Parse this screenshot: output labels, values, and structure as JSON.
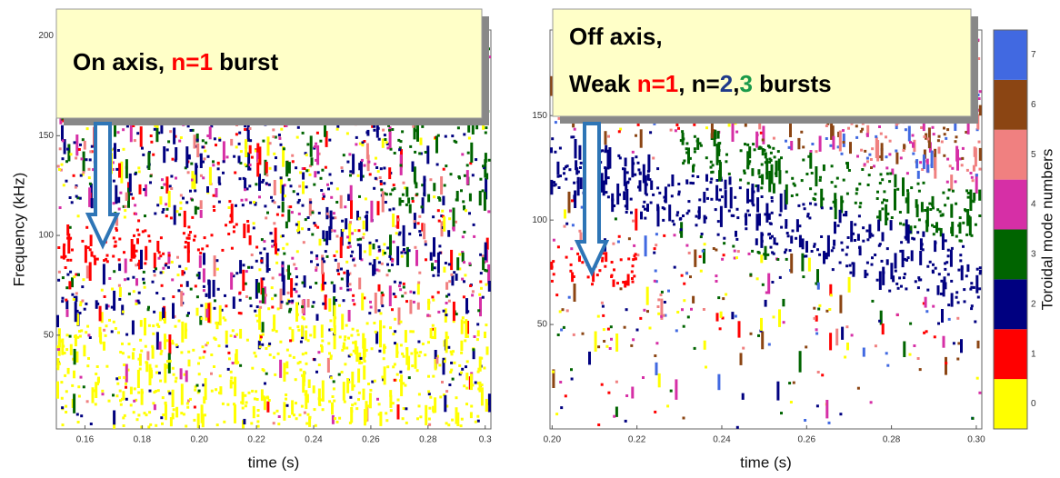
{
  "chart_data": [
    {
      "type": "spectrogram",
      "x_label": "time (s)",
      "y_label": "Frequency (kHz)",
      "xlim": [
        0.15,
        0.302
      ],
      "ylim": [
        3,
        203
      ],
      "xticks": [
        0.16,
        0.18,
        {
          "value": 0.2,
          "label": "0.20"
        },
        0.22,
        0.24,
        0.26,
        0.28,
        0.3
      ],
      "yticks": [
        50,
        100,
        150,
        200
      ],
      "annotation": {
        "lines": [
          [
            {
              "text": "On axis, ",
              "color": "#000000"
            },
            {
              "text": "n=1",
              "color": "#ff0000"
            },
            {
              "text": " burst",
              "color": "#000000"
            }
          ]
        ]
      }
    },
    {
      "type": "spectrogram",
      "x_label": "time (s)",
      "xlim": [
        0.1995,
        0.3013
      ],
      "ylim": [
        0,
        191
      ],
      "xticks": [
        {
          "value": 0.2,
          "label": "0.20"
        },
        0.22,
        0.24,
        0.26,
        0.28,
        {
          "value": 0.3,
          "label": "0.30"
        }
      ],
      "yticks": [
        50,
        100,
        150
      ],
      "annotation": {
        "lines": [
          [
            {
              "text": "Off axis,",
              "color": "#000000"
            }
          ],
          [
            {
              "text": "Weak ",
              "color": "#000000"
            },
            {
              "text": "n=1",
              "color": "#ff0000"
            },
            {
              "text": ", n=",
              "color": "#000000"
            },
            {
              "text": "2",
              "color": "#1f3a8a"
            },
            {
              "text": ",",
              "color": "#000000"
            },
            {
              "text": "3",
              "color": "#1a9a4a"
            },
            {
              "text": " bursts",
              "color": "#000000"
            }
          ]
        ]
      }
    },
    {
      "type": "colorbar",
      "label": "Toroidal mode numbers",
      "categories": [
        0,
        1,
        2,
        3,
        4,
        5,
        6,
        7
      ],
      "colors": [
        "#ffff00",
        "#ff0000",
        "#000080",
        "#006400",
        "#d62fa6",
        "#f08080",
        "#8b4513",
        "#4169e1"
      ]
    }
  ]
}
